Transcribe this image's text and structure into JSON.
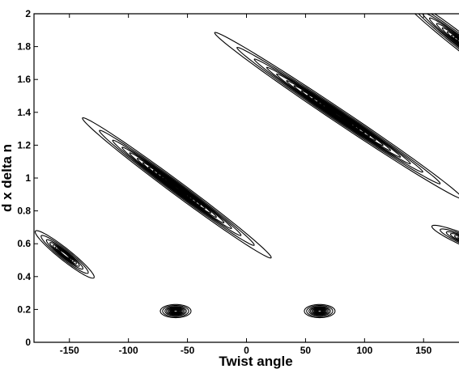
{
  "chart_data": {
    "type": "contour",
    "title": "",
    "xlabel": "Twist angle",
    "ylabel": "d x delta n",
    "xlim": [
      -180,
      180
    ],
    "ylim": [
      0,
      2
    ],
    "xticks": [
      -150,
      -100,
      -50,
      0,
      50,
      100,
      150
    ],
    "yticks": [
      0,
      0.2,
      0.4,
      0.6,
      0.8,
      1,
      1.2,
      1.4,
      1.6,
      1.8,
      2
    ],
    "x_tick_labels": [
      "-150",
      "-100",
      "-50",
      "0",
      "50",
      "100",
      "150"
    ],
    "y_tick_labels": [
      "0",
      "0.2",
      "0.4",
      "0.6",
      "0.8",
      "1",
      "1.2",
      "1.4",
      "1.6",
      "1.8",
      "2"
    ],
    "grid": false,
    "legend": "none",
    "line_color": "#000000",
    "contour_features": [
      {
        "name": "peak-1",
        "center": [
          -60,
          0.19
        ],
        "halfwidth": [
          13,
          0.04
        ],
        "tilt": 0,
        "levels": [
          1.0,
          0.85,
          0.7,
          0.6,
          0.5,
          0.42,
          0.35,
          0.3,
          0.25,
          0.2,
          0.16,
          0.12
        ]
      },
      {
        "name": "peak-2",
        "center": [
          62,
          0.19
        ],
        "halfwidth": [
          13,
          0.04
        ],
        "tilt": 0,
        "levels": [
          1.0,
          0.85,
          0.7,
          0.6,
          0.5,
          0.42,
          0.35,
          0.3,
          0.25,
          0.2,
          0.16,
          0.12
        ]
      },
      {
        "name": "band-3",
        "center": [
          -59,
          0.94
        ],
        "halfwidth": [
          80,
          0.05
        ],
        "tilt": -0.0053,
        "levels": [
          1.0,
          0.82,
          0.68,
          0.58,
          0.5,
          0.42,
          0.36,
          0.3,
          0.25,
          0.21,
          0.17,
          0.14,
          0.11,
          0.09,
          0.07
        ]
      },
      {
        "name": "band-4",
        "center": [
          78,
          1.38
        ],
        "halfwidth": [
          105,
          0.05
        ],
        "tilt": -0.0048,
        "levels": [
          1.0,
          0.82,
          0.68,
          0.58,
          0.5,
          0.42,
          0.36,
          0.3,
          0.25,
          0.21,
          0.17,
          0.14,
          0.11,
          0.09,
          0.07
        ]
      },
      {
        "name": "band-5",
        "center": [
          -154,
          0.535
        ],
        "halfwidth": [
          25,
          0.045
        ],
        "tilt": -0.0055,
        "levels": [
          1.0,
          0.8,
          0.62,
          0.5,
          0.4,
          0.32,
          0.25,
          0.2,
          0.16
        ]
      },
      {
        "name": "band-6",
        "center": [
          188,
          1.79
        ],
        "halfwidth": [
          60,
          0.06
        ],
        "tilt": -0.0055,
        "levels": [
          1.0,
          0.8,
          0.65,
          0.55,
          0.45,
          0.37,
          0.3,
          0.24,
          0.2,
          0.16
        ]
      },
      {
        "name": "band-7",
        "center": [
          192,
          0.6
        ],
        "halfwidth": [
          35,
          0.04
        ],
        "tilt": -0.003,
        "levels": [
          1.0,
          0.8,
          0.65,
          0.55,
          0.45,
          0.37,
          0.3,
          0.24,
          0.2,
          0.16
        ]
      }
    ]
  }
}
